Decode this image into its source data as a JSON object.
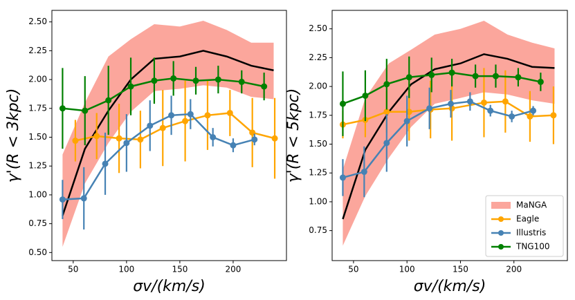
{
  "chart_data": [
    {
      "type": "line",
      "xlabel": "σv/(km/s)",
      "ylabel": "γ'(R < 3kpc)",
      "xlim": [
        30,
        250
      ],
      "ylim": [
        0.43,
        2.6
      ],
      "xticks": [
        50,
        100,
        150,
        200
      ],
      "yticks": [
        {
          "value": 0.5,
          "label": "0.50"
        },
        {
          "value": 0.75,
          "label": "0.75"
        },
        {
          "value": 1.0,
          "label": "1.00"
        },
        {
          "value": 1.25,
          "label": "1.25"
        },
        {
          "value": 1.5,
          "label": "1.50"
        },
        {
          "value": 1.75,
          "label": "1.75"
        },
        {
          "value": 2.0,
          "label": "2.00"
        },
        {
          "value": 2.25,
          "label": "2.25"
        },
        {
          "value": 2.5,
          "label": "2.50"
        }
      ],
      "band": {
        "color": "#fa8072",
        "x": [
          40,
          61,
          83,
          104,
          126,
          150,
          172,
          194,
          217,
          238
        ],
        "lower": [
          0.55,
          1.1,
          1.45,
          1.72,
          1.9,
          1.92,
          1.95,
          1.93,
          1.85,
          1.83
        ],
        "upper": [
          1.35,
          1.8,
          2.2,
          2.35,
          2.48,
          2.46,
          2.51,
          2.43,
          2.32,
          2.32
        ]
      },
      "median": {
        "color": "#000000",
        "x": [
          40,
          61,
          83,
          104,
          126,
          150,
          172,
          194,
          217,
          238
        ],
        "values": [
          0.82,
          1.4,
          1.73,
          2.0,
          2.18,
          2.2,
          2.25,
          2.2,
          2.12,
          2.08
        ]
      },
      "series": [
        {
          "color": "#ffa500",
          "x": [
            52,
            72,
            93,
            113,
            134,
            155,
            176,
            197,
            218,
            239
          ],
          "values": [
            1.47,
            1.51,
            1.49,
            1.48,
            1.58,
            1.64,
            1.69,
            1.71,
            1.54,
            1.49
          ],
          "errors": [
            0.18,
            0.2,
            0.3,
            0.25,
            0.33,
            0.35,
            0.3,
            0.2,
            0.3,
            0.35
          ]
        },
        {
          "color": "#4682b4",
          "x": [
            40,
            60,
            80,
            100,
            122,
            142,
            160,
            181,
            200,
            220
          ],
          "values": [
            0.96,
            0.97,
            1.27,
            1.45,
            1.6,
            1.69,
            1.7,
            1.5,
            1.43,
            1.48
          ],
          "errors": [
            0.17,
            0.27,
            0.27,
            0.25,
            0.22,
            0.17,
            0.13,
            0.08,
            0.06,
            0.05
          ]
        },
        {
          "color": "#008000",
          "x": [
            40,
            61,
            83,
            104,
            126,
            144,
            165,
            186,
            208,
            229
          ],
          "values": [
            1.75,
            1.73,
            1.82,
            1.94,
            1.99,
            2.01,
            1.99,
            2.0,
            1.98,
            1.94
          ],
          "errors": [
            0.35,
            0.3,
            0.3,
            0.25,
            0.2,
            0.15,
            0.12,
            0.12,
            0.1,
            0.12
          ]
        }
      ]
    },
    {
      "type": "line",
      "xlabel": "σv/(km/s)",
      "ylabel": "γ'(R < 5kpc)",
      "xlim": [
        30,
        250
      ],
      "ylim": [
        0.49,
        2.66
      ],
      "xticks": [
        50,
        100,
        150,
        200
      ],
      "yticks": [
        {
          "value": 0.75,
          "label": "0.75"
        },
        {
          "value": 1.0,
          "label": "1.00"
        },
        {
          "value": 1.25,
          "label": "1.25"
        },
        {
          "value": 1.5,
          "label": "1.50"
        },
        {
          "value": 1.75,
          "label": "1.75"
        },
        {
          "value": 2.0,
          "label": "2.00"
        },
        {
          "value": 2.25,
          "label": "2.25"
        },
        {
          "value": 2.5,
          "label": "2.50"
        }
      ],
      "legend": "lower right",
      "band": {
        "name": "MaNGA",
        "color": "#fa8072",
        "x": [
          40,
          61,
          83,
          104,
          126,
          150,
          172,
          194,
          217,
          238
        ],
        "lower": [
          0.62,
          1.05,
          1.38,
          1.65,
          1.85,
          1.9,
          1.95,
          1.93,
          1.88,
          1.85
        ],
        "upper": [
          1.28,
          1.9,
          2.2,
          2.32,
          2.45,
          2.5,
          2.57,
          2.45,
          2.38,
          2.33
        ]
      },
      "median": {
        "color": "#000000",
        "x": [
          40,
          61,
          83,
          104,
          126,
          150,
          172,
          194,
          217,
          238
        ],
        "values": [
          0.85,
          1.45,
          1.78,
          2.02,
          2.15,
          2.2,
          2.28,
          2.24,
          2.17,
          2.16
        ]
      },
      "series": [
        {
          "name": "Eagle",
          "color": "#ffa500",
          "x": [
            40,
            61,
            81,
            102,
            122,
            142,
            172,
            192,
            215,
            237
          ],
          "values": [
            1.67,
            1.71,
            1.78,
            1.78,
            1.8,
            1.81,
            1.86,
            1.87,
            1.74,
            1.75
          ],
          "errors": [
            0.12,
            0.15,
            0.18,
            0.25,
            0.25,
            0.28,
            0.3,
            0.27,
            0.22,
            0.25
          ]
        },
        {
          "name": "Illustris",
          "color": "#4682b4",
          "x": [
            40,
            60,
            81,
            100,
            121,
            141,
            159,
            178,
            198,
            218
          ],
          "values": [
            1.21,
            1.26,
            1.51,
            1.7,
            1.81,
            1.85,
            1.87,
            1.79,
            1.74,
            1.79
          ],
          "errors": [
            0.16,
            0.22,
            0.25,
            0.22,
            0.18,
            0.12,
            0.08,
            0.05,
            0.05,
            0.04
          ]
        },
        {
          "name": "TNG100",
          "color": "#008000",
          "x": [
            40,
            61,
            81,
            102,
            123,
            142,
            164,
            183,
            204,
            225
          ],
          "values": [
            1.85,
            1.92,
            2.02,
            2.08,
            2.1,
            2.12,
            2.09,
            2.09,
            2.08,
            2.04
          ],
          "errors": [
            0.28,
            0.22,
            0.22,
            0.18,
            0.15,
            0.12,
            0.1,
            0.1,
            0.08,
            0.08
          ]
        }
      ]
    }
  ]
}
